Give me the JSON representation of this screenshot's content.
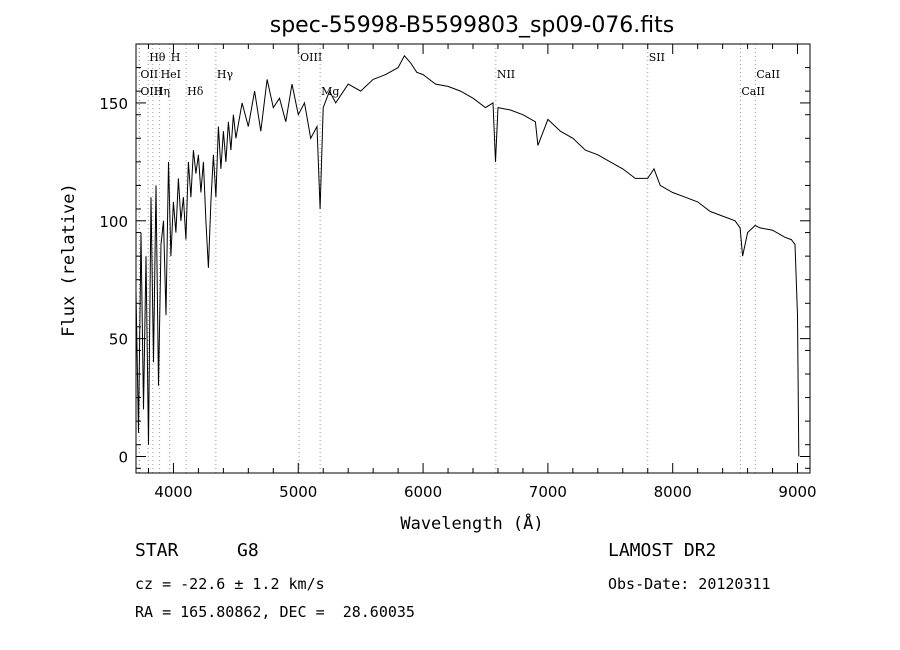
{
  "chart_data": {
    "type": "line",
    "title": "spec-55998-B5599803_sp09-076.fits",
    "xlabel": "Wavelength (Å)",
    "ylabel": "Flux (relative)",
    "xlim": [
      3700,
      9100
    ],
    "ylim": [
      -7,
      175
    ],
    "x_ticks": [
      4000,
      5000,
      6000,
      7000,
      8000,
      9000
    ],
    "y_ticks": [
      0,
      50,
      100,
      150
    ],
    "grid": false,
    "spectral_lines": [
      {
        "name": "Hθ",
        "wavelength": 3798,
        "row": 0
      },
      {
        "name": "H",
        "wavelength": 3970,
        "row": 0
      },
      {
        "name": "OII",
        "wavelength": 3727,
        "row": 1
      },
      {
        "name": "HeI",
        "wavelength": 3889,
        "row": 1
      },
      {
        "name": "OIII",
        "wavelength": 3727,
        "row": 2
      },
      {
        "name": "Hη",
        "wavelength": 3835,
        "row": 2
      },
      {
        "name": "Hδ",
        "wavelength": 4102,
        "row": 2
      },
      {
        "name": "Hγ",
        "wavelength": 4340,
        "row": 1
      },
      {
        "name": "OIII",
        "wavelength": 5007,
        "row": 0
      },
      {
        "name": "Mg",
        "wavelength": 5175,
        "row": 2
      },
      {
        "name": "NII",
        "wavelength": 6583,
        "row": 1
      },
      {
        "name": "SII",
        "wavelength": 7800,
        "row": 0
      },
      {
        "name": "CaII",
        "wavelength": 8542,
        "row": 2
      },
      {
        "name": "CaII",
        "wavelength": 8662,
        "row": 1
      }
    ],
    "series": [
      {
        "x": [
          3700,
          3720,
          3740,
          3760,
          3780,
          3800,
          3820,
          3840,
          3860,
          3880,
          3900,
          3920,
          3940,
          3960,
          3980,
          4000,
          4020,
          4040,
          4060,
          4080,
          4100,
          4120,
          4140,
          4160,
          4180,
          4200,
          4220,
          4240,
          4260,
          4280,
          4300,
          4320,
          4340,
          4360,
          4380,
          4400,
          4420,
          4440,
          4460,
          4480,
          4500,
          4550,
          4600,
          4650,
          4700,
          4750,
          4800,
          4850,
          4900,
          4950,
          5000,
          5050,
          5100,
          5150,
          5175,
          5200,
          5250,
          5300,
          5400,
          5500,
          5600,
          5700,
          5800,
          5850,
          5900,
          5950,
          6000,
          6050,
          6100,
          6200,
          6300,
          6400,
          6500,
          6560,
          6580,
          6600,
          6700,
          6800,
          6900,
          6920,
          7000,
          7100,
          7200,
          7300,
          7400,
          7500,
          7600,
          7700,
          7800,
          7850,
          7900,
          8000,
          8100,
          8200,
          8300,
          8400,
          8500,
          8540,
          8560,
          8600,
          8660,
          8700,
          8800,
          8900,
          8950,
          8980,
          9000,
          9010
        ],
        "y": [
          70,
          10,
          95,
          20,
          85,
          5,
          110,
          40,
          115,
          30,
          90,
          100,
          60,
          125,
          85,
          108,
          95,
          118,
          100,
          110,
          92,
          125,
          110,
          130,
          120,
          128,
          112,
          125,
          100,
          80,
          108,
          128,
          110,
          140,
          122,
          138,
          125,
          142,
          130,
          145,
          135,
          150,
          140,
          155,
          138,
          160,
          148,
          152,
          142,
          158,
          145,
          150,
          135,
          140,
          105,
          148,
          155,
          150,
          158,
          155,
          160,
          162,
          165,
          170,
          167,
          163,
          162,
          160,
          158,
          157,
          155,
          152,
          148,
          150,
          125,
          148,
          147,
          145,
          142,
          132,
          143,
          138,
          135,
          130,
          128,
          125,
          122,
          118,
          118,
          122,
          115,
          112,
          110,
          108,
          104,
          102,
          100,
          97,
          85,
          95,
          98,
          97,
          96,
          93,
          92,
          90,
          60,
          0
        ]
      }
    ]
  },
  "info": {
    "object_class": "STAR",
    "subclass": "G8",
    "survey": "LAMOST DR2",
    "redshift": "cz = -22.6 ± 1.2 km/s",
    "obs_date": "Obs-Date: 20120311",
    "coords": "RA = 165.80862, DEC =  28.60035"
  }
}
